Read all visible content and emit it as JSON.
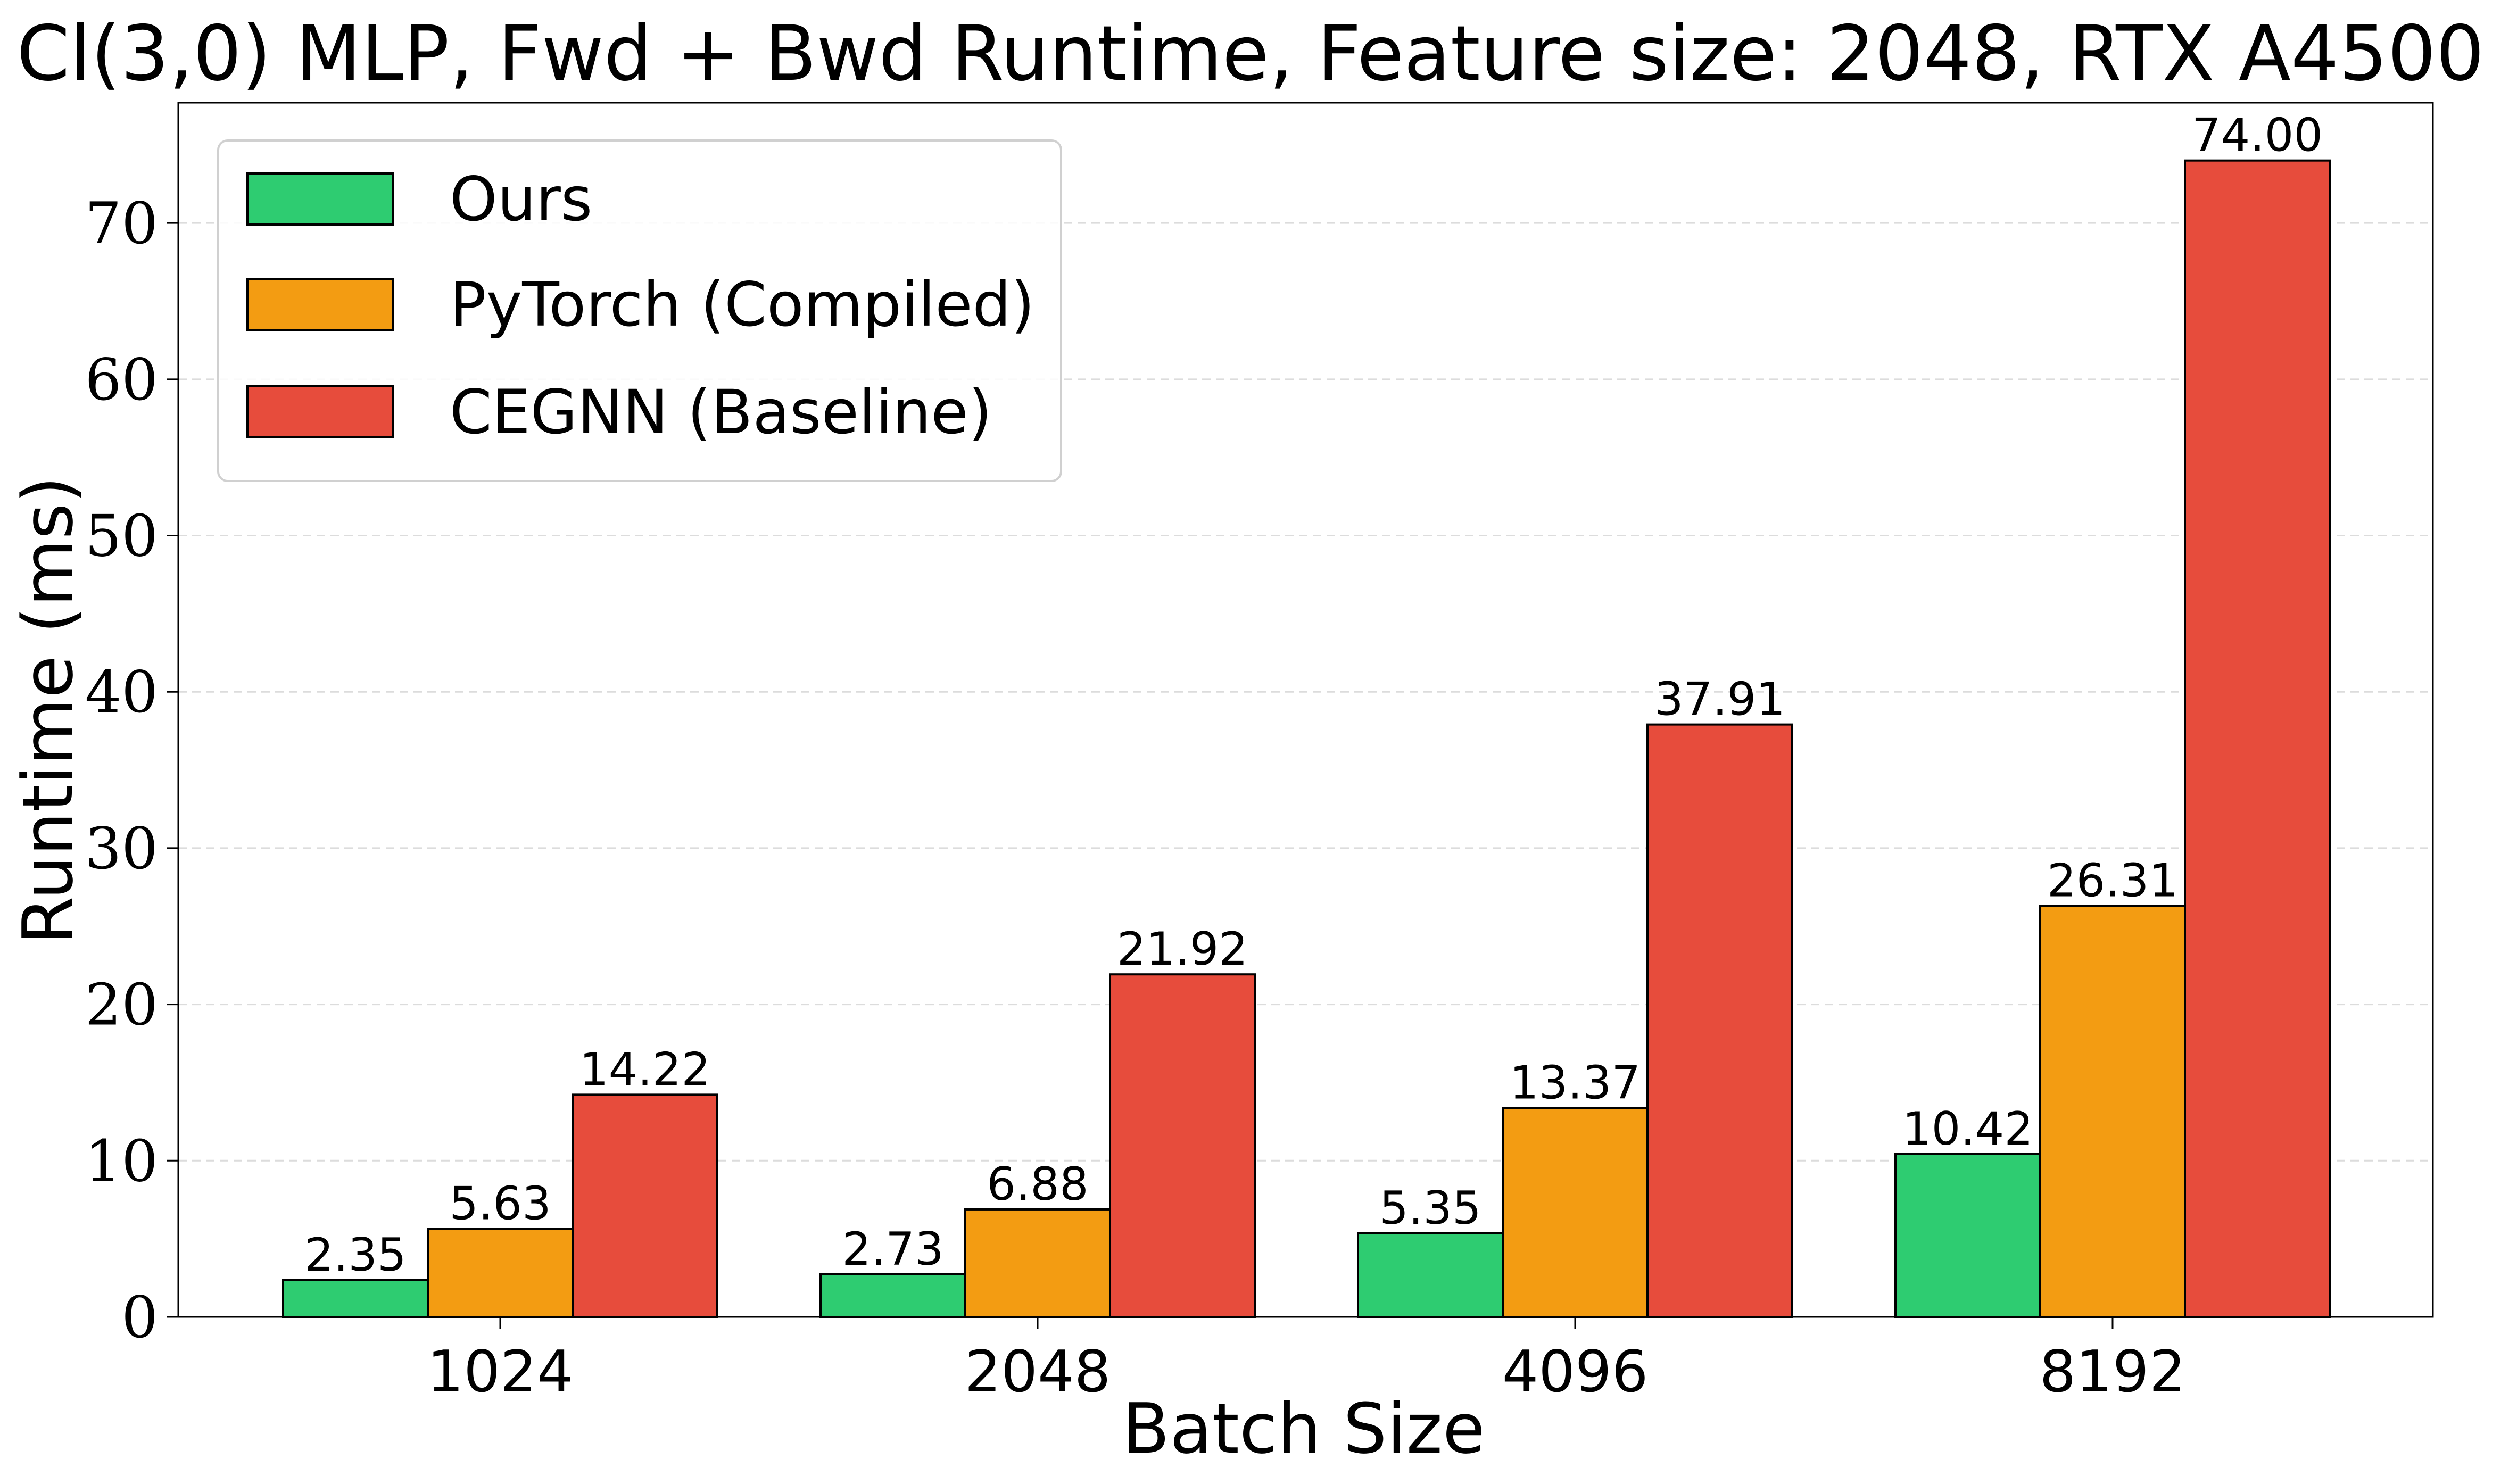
{
  "chart_data": {
    "type": "bar",
    "title": "Cl(3,0) MLP, Fwd + Bwd Runtime, Feature size: 2048, RTX A4500",
    "xlabel": "Batch Size",
    "ylabel": "Runtime (ms)",
    "categories": [
      "1024",
      "2048",
      "4096",
      "8192"
    ],
    "series": [
      {
        "name": "Ours",
        "color": "#2ecc71",
        "values": [
          2.35,
          2.73,
          5.35,
          10.42
        ],
        "labels": [
          "2.35",
          "2.73",
          "5.35",
          "10.42"
        ]
      },
      {
        "name": "PyTorch (Compiled)",
        "color": "#f39c12",
        "values": [
          5.63,
          6.88,
          13.37,
          26.31
        ],
        "labels": [
          "5.63",
          "6.88",
          "13.37",
          "26.31"
        ]
      },
      {
        "name": "CEGNN (Baseline)",
        "color": "#e74c3c",
        "values": [
          14.22,
          21.92,
          37.91,
          74.0
        ],
        "labels": [
          "14.22",
          "21.92",
          "37.91",
          "74.00"
        ]
      }
    ],
    "ylim": [
      0,
      77.7
    ],
    "yticks": [
      0,
      10,
      20,
      30,
      40,
      50,
      60,
      70
    ],
    "ytick_labels": [
      "0",
      "10",
      "20",
      "30",
      "40",
      "50",
      "60",
      "70"
    ],
    "grid": "horizontal-dashed",
    "legend_position": "top-left"
  }
}
